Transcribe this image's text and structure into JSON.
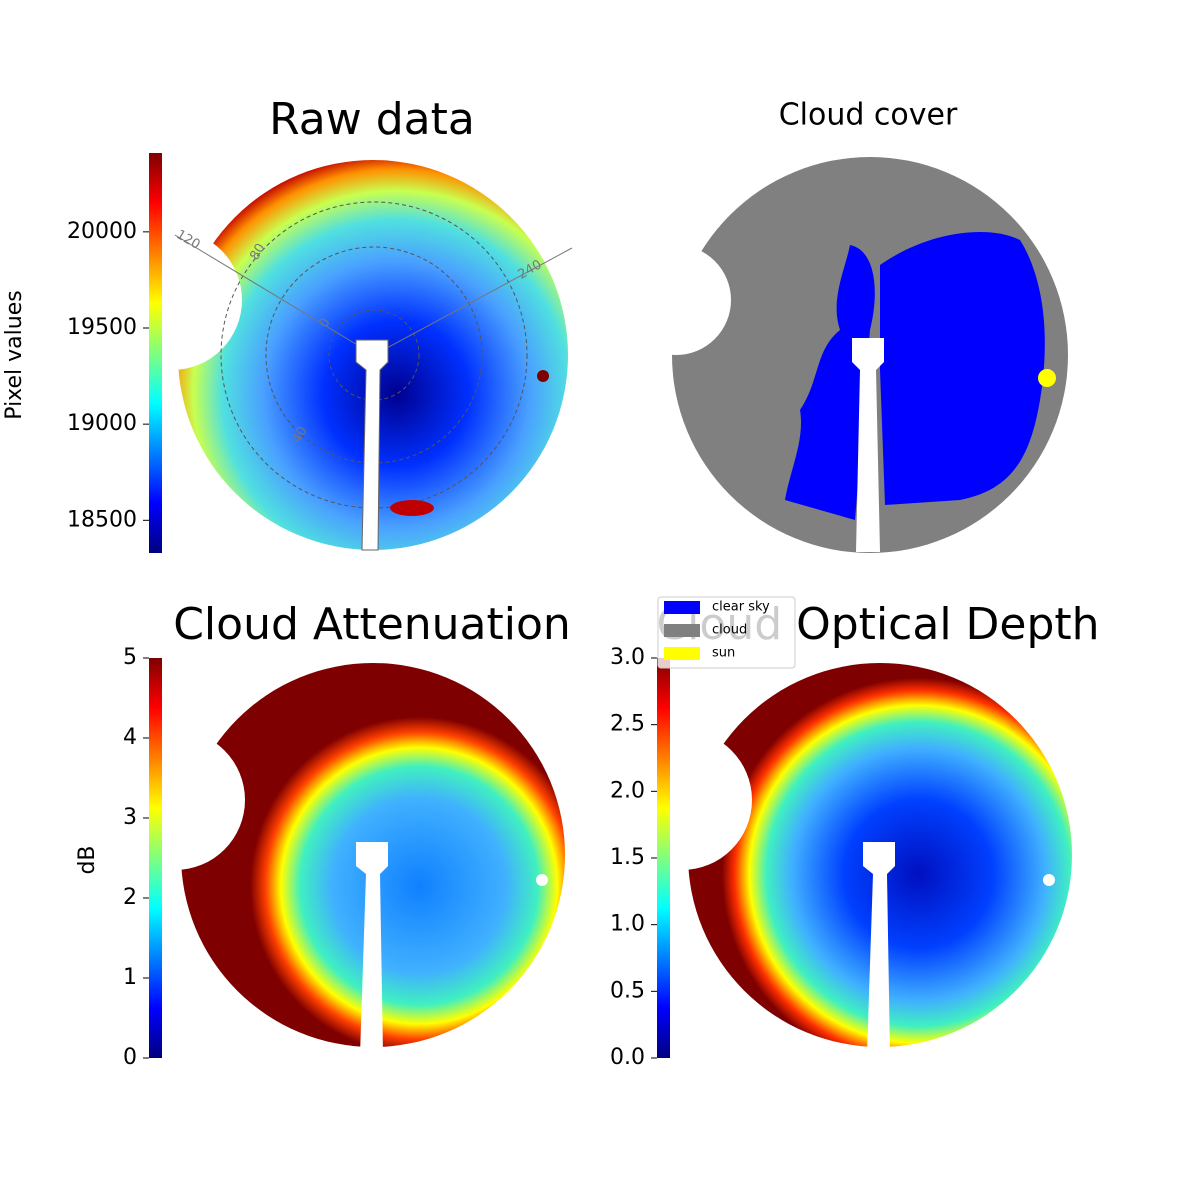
{
  "chart_data": [
    {
      "type": "image",
      "title": "Raw data",
      "colorbar_label": "Pixel values",
      "cmap": "jet",
      "clim": [
        18330,
        20410
      ],
      "cticks": [
        18500,
        19000,
        19500,
        20000
      ],
      "polar_labels": [
        "120",
        "80",
        "240",
        "40",
        "0"
      ]
    },
    {
      "type": "categorical-image",
      "title": "Cloud cover",
      "legend": [
        {
          "name": "clear sky",
          "color": "#0000ff"
        },
        {
          "name": "cloud",
          "color": "#808080"
        },
        {
          "name": "sun",
          "color": "#ffff00"
        }
      ]
    },
    {
      "type": "image",
      "title": "Cloud Attenuation",
      "colorbar_label": "dB",
      "cmap": "jet",
      "clim": [
        0,
        5
      ],
      "cticks": [
        0,
        1,
        2,
        3,
        4,
        5
      ]
    },
    {
      "type": "image",
      "title": "Cloud Optical Depth",
      "cmap": "jet",
      "clim": [
        0,
        3
      ],
      "cticks": [
        {
          "value": 0,
          "label": "0.0"
        },
        0.5,
        {
          "value": 1,
          "label": "1.0"
        },
        1.5,
        {
          "value": 2,
          "label": "2.0"
        },
        2.5,
        {
          "value": 3,
          "label": "3.0"
        }
      ]
    }
  ]
}
